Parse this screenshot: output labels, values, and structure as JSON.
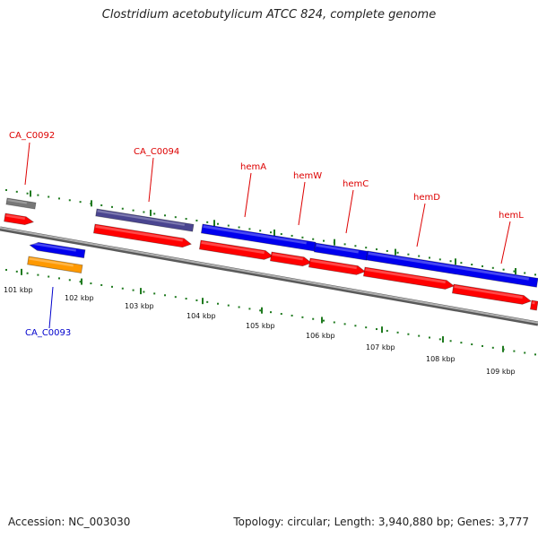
{
  "header": {
    "title": "Clostridium acetobutylicum ATCC 824, complete genome"
  },
  "footer": {
    "accession": "Accession: NC_003030",
    "stats": "Topology: circular; Length: 3,940,880 bp; Genes: 3,777"
  },
  "colors": {
    "backbone": "#8c8c8c",
    "tick": "#1f7a1f",
    "cds": "#ff0000",
    "gene_blue": "#0000ee",
    "gene_gray": "#777777",
    "gene_purple": "#4a4590",
    "gene_orange": "#ff9900",
    "label_red": "#dd0000",
    "label_blue": "#0000cc"
  },
  "map": {
    "axis": {
      "labels": [
        "101 kbp",
        "102 kbp",
        "103 kbp",
        "104 kbp",
        "105 kbp",
        "106 kbp",
        "107 kbp",
        "108 kbp",
        "109 kbp"
      ]
    },
    "gene_labels": [
      {
        "text": "CA_C0092",
        "color": "red"
      },
      {
        "text": "CA_C0093",
        "color": "blue"
      },
      {
        "text": "CA_C0094",
        "color": "red"
      },
      {
        "text": "hemA",
        "color": "red"
      },
      {
        "text": "hemW",
        "color": "red"
      },
      {
        "text": "hemC",
        "color": "red"
      },
      {
        "text": "hemD",
        "color": "red"
      },
      {
        "text": "hemL",
        "color": "red"
      }
    ]
  }
}
